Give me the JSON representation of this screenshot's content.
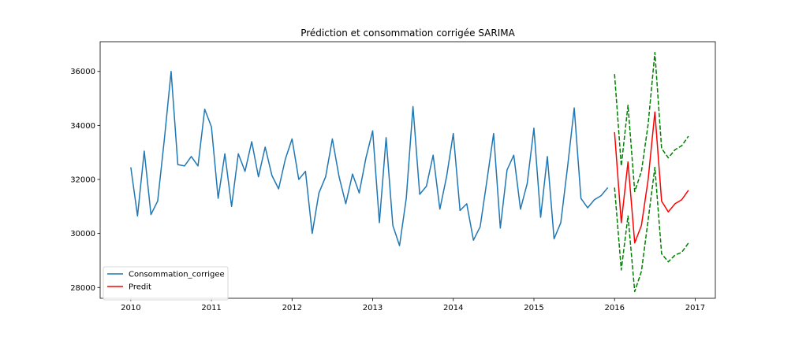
{
  "chart_data": {
    "type": "line",
    "title": "Prédiction et consommation corrigée SARIMA",
    "xlabel": "",
    "ylabel": "",
    "xlim": [
      2009.62,
      2017.25
    ],
    "ylim": [
      27600,
      37100
    ],
    "xticks": [
      2010,
      2011,
      2012,
      2013,
      2014,
      2015,
      2016,
      2017
    ],
    "xtick_labels": [
      "2010",
      "2011",
      "2012",
      "2013",
      "2014",
      "2015",
      "2016",
      "2017"
    ],
    "yticks": [
      28000,
      30000,
      32000,
      34000,
      36000
    ],
    "ytick_labels": [
      "28000",
      "30000",
      "32000",
      "34000",
      "36000"
    ],
    "grid": false,
    "legend_position": "bottom-left",
    "series": [
      {
        "name": "Consommation_corrigee",
        "color": "#1f77b4",
        "style": "solid",
        "x_start": 2010.0,
        "step": 0.08333,
        "values": [
          32450,
          30650,
          33050,
          30700,
          31200,
          33500,
          36000,
          32550,
          32500,
          32850,
          32500,
          34600,
          33950,
          31300,
          32950,
          31000,
          32950,
          32300,
          33400,
          32100,
          33200,
          32150,
          31650,
          32750,
          33500,
          32000,
          32300,
          30000,
          31500,
          32100,
          33500,
          32100,
          31100,
          32200,
          31500,
          32800,
          33800,
          30400,
          33550,
          30300,
          29550,
          31300,
          34700,
          31450,
          31750,
          32900,
          30900,
          32100,
          33700,
          30850,
          31100,
          29750,
          30250,
          31950,
          33700,
          30200,
          32350,
          32900,
          30900,
          31850,
          33900,
          30600,
          32850,
          29800,
          30400,
          32450,
          34650,
          31300,
          30950,
          31250,
          31400,
          31700
        ]
      },
      {
        "name": "Predit",
        "color": "#ff0000",
        "style": "solid",
        "x_start": 2016.0,
        "step": 0.08333,
        "values": [
          33750,
          30400,
          32650,
          29650,
          30300,
          32000,
          34500,
          31200,
          30800,
          31100,
          31250,
          31600
        ]
      },
      {
        "name": "",
        "color": "#008000",
        "style": "dashed",
        "x_start": 2016.0,
        "step": 0.08333,
        "values": [
          35900,
          32500,
          34750,
          31550,
          32300,
          34050,
          36700,
          33150,
          32800,
          33100,
          33250,
          33600
        ]
      },
      {
        "name": "",
        "color": "#008000",
        "style": "dashed",
        "x_start": 2016.0,
        "step": 0.08333,
        "values": [
          31700,
          28650,
          30650,
          27850,
          28600,
          30500,
          32450,
          29250,
          28950,
          29200,
          29300,
          29650
        ]
      }
    ]
  }
}
